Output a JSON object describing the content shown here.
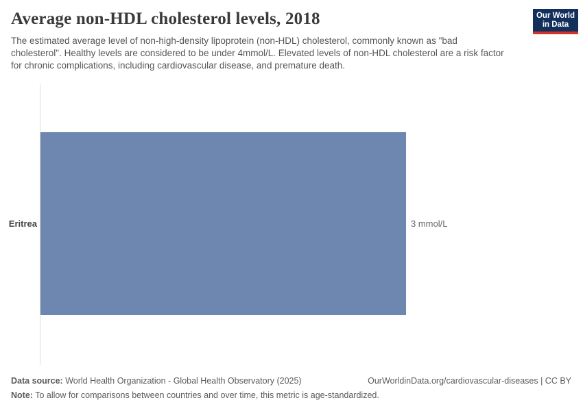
{
  "header": {
    "title": "Average non-HDL cholesterol levels, 2018",
    "subtitle": "The estimated average level of non-high-density lipoprotein (non-HDL) cholesterol, commonly known as \"bad cholesterol\". Healthy levels are considered to be under 4mmol/L. Elevated levels of non-HDL cholesterol are a risk factor for chronic complications, including cardiovascular disease, and premature death.",
    "logo": {
      "line1": "Our World",
      "line2": "in Data",
      "bg_color": "#12305b",
      "stripe_color": "#d0342c"
    }
  },
  "chart_data": {
    "type": "bar",
    "orientation": "horizontal",
    "title": "Average non-HDL cholesterol levels, 2018",
    "categories": [
      "Eritrea"
    ],
    "values": [
      3
    ],
    "unit": "mmol/L",
    "value_labels": [
      "3 mmol/L"
    ],
    "xlim": [
      0,
      3
    ],
    "bar_color": "#6e87b1",
    "axis_color": "#dedede",
    "grid": false,
    "legend": "none"
  },
  "footer": {
    "data_source_label": "Data source:",
    "data_source_text": "World Health Organization - Global Health Observatory (2025)",
    "citation": "OurWorldinData.org/cardiovascular-diseases | CC BY",
    "note_label": "Note:",
    "note_text": "To allow for comparisons between countries and over time, this metric is age-standardized."
  }
}
